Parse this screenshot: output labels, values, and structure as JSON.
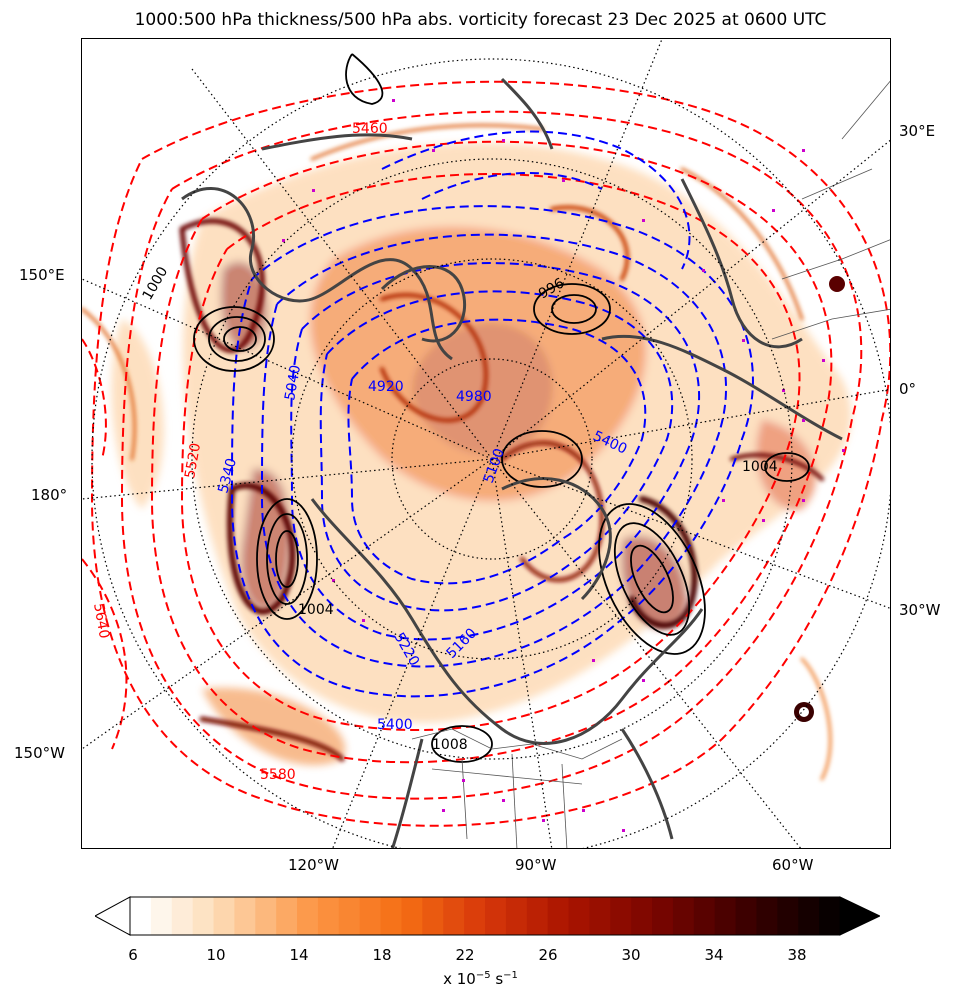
{
  "title": "1000:500 hPa thickness/500 hPa abs. vorticity forecast 23 Dec 2025 at 0600 UTC",
  "lon_labels": {
    "e30": "30°E",
    "e150": "150°E",
    "zero": "0°",
    "d180": "180°",
    "w30": "30°W",
    "w150": "150°W",
    "w120": "120°W",
    "w90": "90°W",
    "w60": "60°W"
  },
  "thickness_labels": {
    "t5460": "5460",
    "t5520": "5520",
    "t5640": "5640",
    "t5580": "5580",
    "t5400a": "5400",
    "t5400b": "5400",
    "t5340": "5340",
    "t5040": "5040",
    "t4980": "4980",
    "t5100": "5100",
    "t5160": "5160",
    "t5220": "5220",
    "t4920": "4920"
  },
  "pressure_labels": {
    "p1004a": "1004",
    "p1004b": "1004",
    "p1000": "1000",
    "p1008": "1008",
    "p996": "996"
  },
  "colorbar": {
    "ticks": [
      "6",
      "10",
      "14",
      "18",
      "22",
      "26",
      "30",
      "34",
      "38"
    ],
    "label_prefix": "x 10",
    "label_exp1": "−5",
    "label_mid": " s",
    "label_exp2": "−1"
  },
  "colors": {
    "thickness_warm": "#ff0000",
    "thickness_cold": "#0000ff",
    "pressure": "#000000",
    "coastline": "#444444",
    "markers": "#cc00cc"
  }
}
